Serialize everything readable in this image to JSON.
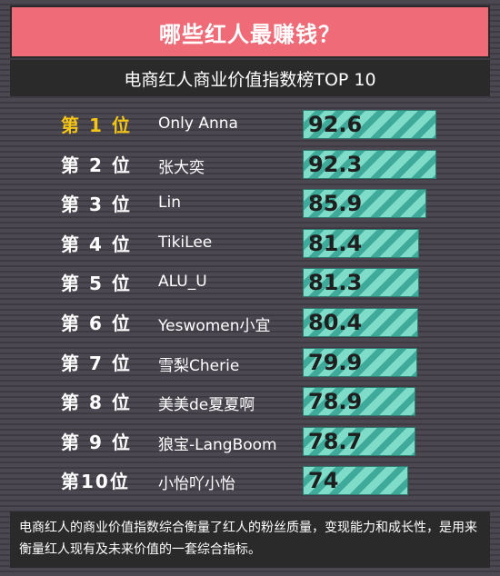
{
  "title": "哪些红人最赚钱？",
  "subtitle": "电商红人商业价值指数榜TOP 10",
  "footnote": "电商红人的商业价值指数综合衡量了红人的粉丝质量，变现能力和成长性，是用来衡量红人现有及未来价值的一套综合指标。",
  "colors": {
    "header": "#ef6b78",
    "bar_light": "#7fdcc8",
    "bar_dark": "#3fa99a",
    "first_rank": "#f5c518"
  },
  "chart_data": {
    "type": "bar",
    "orientation": "horizontal",
    "title": "电商红人商业价值指数榜TOP 10",
    "categories": [
      "Only Anna",
      "张大奕",
      "Lin",
      "TikiLee",
      "ALU_U",
      "Yeswomen小宜",
      "雪梨Cherie",
      "美美de夏夏啊",
      "狼宝-LangBoom",
      "小怡吖小怡"
    ],
    "ranks": [
      "第 1 位",
      "第 2 位",
      "第 3 位",
      "第 4 位",
      "第 5 位",
      "第 6 位",
      "第 7 位",
      "第 8 位",
      "第 9 位",
      "第10位"
    ],
    "values": [
      92.6,
      92.3,
      85.9,
      81.4,
      81.3,
      80.4,
      79.9,
      78.9,
      78.7,
      74
    ],
    "value_labels": [
      "92.6",
      "92.3",
      "85.9",
      "81.4",
      "81.3",
      "80.4",
      "79.9",
      "78.9",
      "78.7",
      "74"
    ],
    "xlim": [
      0,
      100
    ]
  }
}
